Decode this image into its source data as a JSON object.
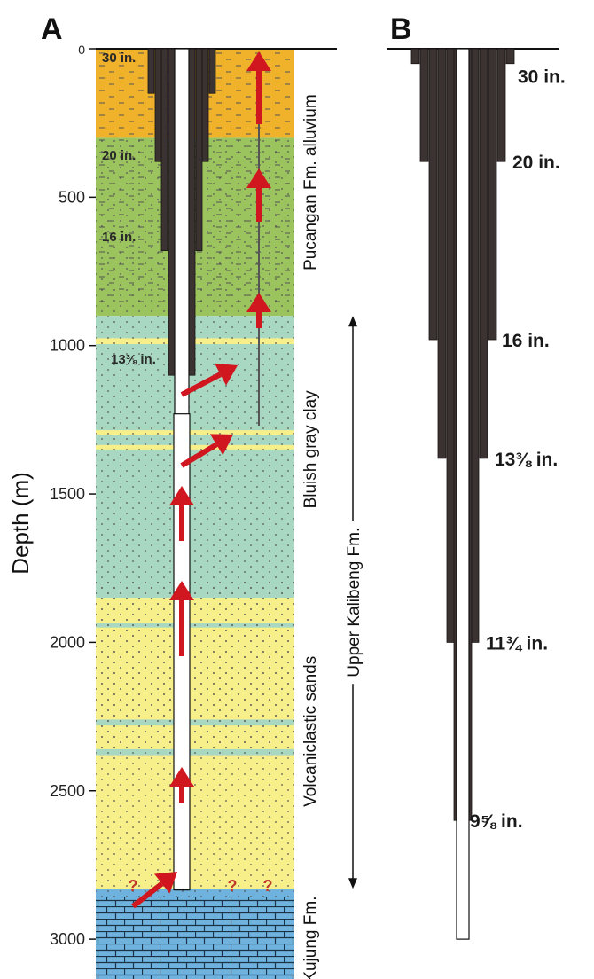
{
  "panels": {
    "a_label": "A",
    "b_label": "B"
  },
  "y_axis": {
    "label": "Depth (m)",
    "ticks": [
      {
        "value": 0,
        "label": "0"
      },
      {
        "value": 500,
        "label": "500"
      },
      {
        "value": 1000,
        "label": "1000"
      },
      {
        "value": 1500,
        "label": "1500"
      },
      {
        "value": 2000,
        "label": "2000"
      },
      {
        "value": 2500,
        "label": "2500"
      },
      {
        "value": 3000,
        "label": "3000"
      }
    ]
  },
  "lithology": {
    "layers": [
      {
        "name": "alluvium",
        "top": 0,
        "bottom": 300,
        "color": "#f0b22a"
      },
      {
        "name": "pucangan-clay",
        "top": 300,
        "bottom": 900,
        "color": "#9cc45e"
      },
      {
        "name": "bluish-gray-clay",
        "top": 900,
        "bottom": 1850,
        "color": "#a9d8c2"
      },
      {
        "name": "volcaniclastic-sands",
        "top": 1850,
        "bottom": 2830,
        "color": "#f7ef8a"
      },
      {
        "name": "kujung-limestone",
        "top": 2830,
        "bottom": 3150,
        "color": "#6fb2dd"
      }
    ],
    "thin_beds": [
      {
        "top": 975,
        "bottom": 995,
        "color": "#f7ef8a"
      },
      {
        "top": 1285,
        "bottom": 1300,
        "color": "#f7ef8a"
      },
      {
        "top": 1335,
        "bottom": 1350,
        "color": "#f7ef8a"
      },
      {
        "top": 1935,
        "bottom": 1950,
        "color": "#a9d8c2"
      },
      {
        "top": 2260,
        "bottom": 2280,
        "color": "#a9d8c2"
      },
      {
        "top": 2360,
        "bottom": 2380,
        "color": "#a9d8c2"
      }
    ],
    "formation_labels": [
      {
        "text": "Pucangan Fm. alluvium",
        "depth": 450
      },
      {
        "text": "Bluish gray clay",
        "depth": 1350
      },
      {
        "text": "Volcaniclastic sands",
        "depth": 2300
      },
      {
        "text": "Kujung Fm.",
        "depth": 3000
      }
    ],
    "upper_kalibeng": {
      "text": "Upper Kalibeng Fm.",
      "top": 900,
      "bottom": 2830
    },
    "question_marks": [
      "?",
      "?",
      "?"
    ]
  },
  "casing_a": {
    "strings": [
      {
        "label": "30 in.",
        "shoe": 150
      },
      {
        "label": "20 in.",
        "shoe": 380
      },
      {
        "label": "16 in.",
        "shoe": 680
      },
      {
        "label": "13⅜ in.",
        "shoe": 1100
      }
    ],
    "open_hole_bottom": 2834
  },
  "casing_b": {
    "strings": [
      {
        "label": "30 in.",
        "shoe": 50
      },
      {
        "label": "20 in.",
        "shoe": 380
      },
      {
        "label": "16 in.",
        "shoe": 980
      },
      {
        "label": "13⅜ in.",
        "shoe": 1380
      },
      {
        "label": "11¾ in.",
        "shoe": 2000
      },
      {
        "label": "9⅝ in.",
        "shoe": 2600
      }
    ],
    "hole_bottom": 3000
  },
  "flow_arrows_color": "#d0161e"
}
